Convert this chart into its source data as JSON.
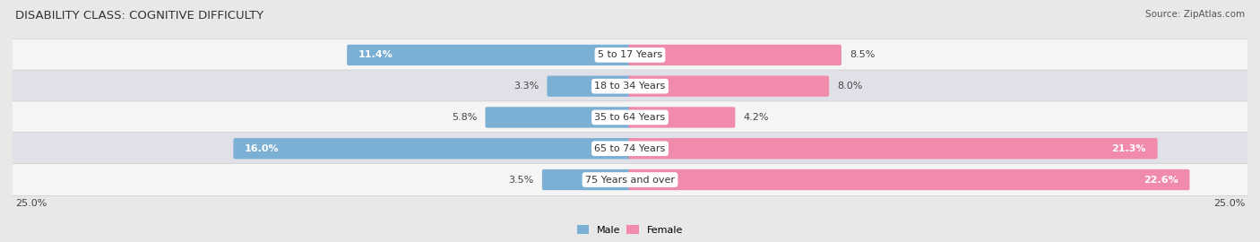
{
  "title": "DISABILITY CLASS: COGNITIVE DIFFICULTY",
  "source": "Source: ZipAtlas.com",
  "categories": [
    "5 to 17 Years",
    "18 to 34 Years",
    "35 to 64 Years",
    "65 to 74 Years",
    "75 Years and over"
  ],
  "male_values": [
    11.4,
    3.3,
    5.8,
    16.0,
    3.5
  ],
  "female_values": [
    8.5,
    8.0,
    4.2,
    21.3,
    22.6
  ],
  "male_color": "#7bafd4",
  "female_color": "#f08bab",
  "male_label": "Male",
  "female_label": "Female",
  "xlim": 25.0,
  "background_color": "#e8e8e8",
  "row_bg_odd": "#f5f5f5",
  "row_bg_even": "#e0e0e8",
  "title_fontsize": 9.5,
  "label_fontsize": 8.0,
  "value_fontsize": 8.0,
  "source_fontsize": 7.5
}
